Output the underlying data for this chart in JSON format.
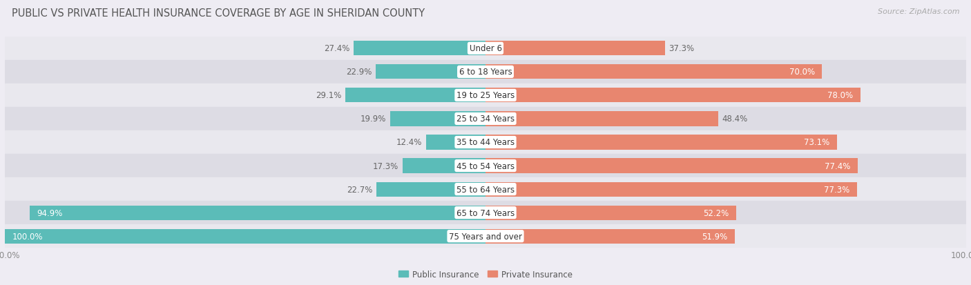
{
  "title": "PUBLIC VS PRIVATE HEALTH INSURANCE COVERAGE BY AGE IN SHERIDAN COUNTY",
  "source": "Source: ZipAtlas.com",
  "categories": [
    "Under 6",
    "6 to 18 Years",
    "19 to 25 Years",
    "25 to 34 Years",
    "35 to 44 Years",
    "45 to 54 Years",
    "55 to 64 Years",
    "65 to 74 Years",
    "75 Years and over"
  ],
  "public_values": [
    27.4,
    22.9,
    29.1,
    19.9,
    12.4,
    17.3,
    22.7,
    94.9,
    100.0
  ],
  "private_values": [
    37.3,
    70.0,
    78.0,
    48.4,
    73.1,
    77.4,
    77.3,
    52.2,
    51.9
  ],
  "public_color": "#5bbcb8",
  "private_color": "#e8866f",
  "bg_color": "#eeecf3",
  "row_bg_colors": [
    "#e9e8ee",
    "#dddce4"
  ],
  "title_color": "#555555",
  "source_color": "#aaaaaa",
  "bar_label_fontsize": 8.5,
  "category_fontsize": 8.5,
  "axis_label_fontsize": 8.5,
  "title_fontsize": 10.5
}
